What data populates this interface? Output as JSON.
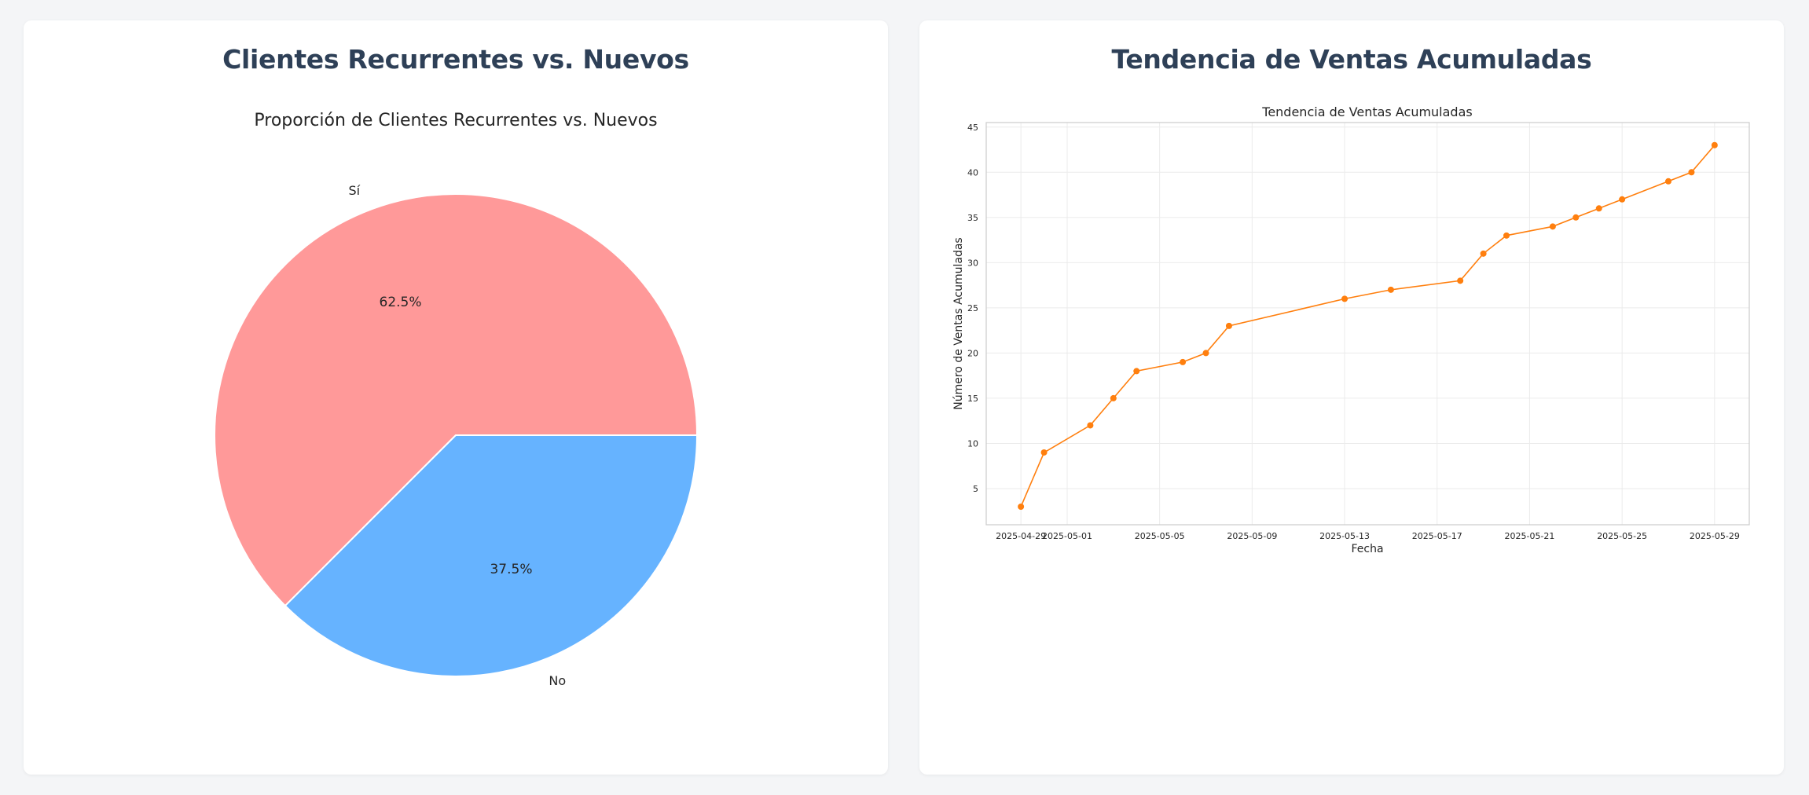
{
  "cards": [
    {
      "title": "Clientes Recurrentes vs. Nuevos"
    },
    {
      "title": "Tendencia de Ventas Acumuladas"
    }
  ],
  "chart_data": [
    {
      "type": "pie",
      "title": "Proporción de Clientes Recurrentes vs. Nuevos",
      "labels": [
        "Sí",
        "No"
      ],
      "values": [
        62.5,
        37.5
      ],
      "value_labels": [
        "62.5%",
        "37.5%"
      ],
      "colors": [
        "#ff9999",
        "#66b3ff"
      ]
    },
    {
      "type": "line",
      "title": "Tendencia de Ventas Acumuladas",
      "xlabel": "Fecha",
      "ylabel": "Número de Ventas Acumuladas",
      "x": [
        "2025-04-29",
        "2025-04-30",
        "2025-05-02",
        "2025-05-03",
        "2025-05-04",
        "2025-05-06",
        "2025-05-07",
        "2025-05-08",
        "2025-05-13",
        "2025-05-15",
        "2025-05-18",
        "2025-05-19",
        "2025-05-20",
        "2025-05-22",
        "2025-05-23",
        "2025-05-24",
        "2025-05-25",
        "2025-05-27",
        "2025-05-28",
        "2025-05-29"
      ],
      "y": [
        3,
        9,
        12,
        15,
        18,
        19,
        20,
        23,
        26,
        27,
        28,
        31,
        33,
        34,
        35,
        36,
        37,
        39,
        40,
        43
      ],
      "xticks": [
        "2025-04-29",
        "2025-05-01",
        "2025-05-05",
        "2025-05-09",
        "2025-05-13",
        "2025-05-17",
        "2025-05-21",
        "2025-05-25",
        "2025-05-29"
      ],
      "yticks": [
        5,
        10,
        15,
        20,
        25,
        30,
        35,
        40,
        45
      ],
      "ylim": [
        1,
        45.5
      ],
      "xlim": [
        "2025-04-27T12:00",
        "2025-05-30T12:00"
      ],
      "color": "#ff7f0e",
      "grid": true
    }
  ]
}
